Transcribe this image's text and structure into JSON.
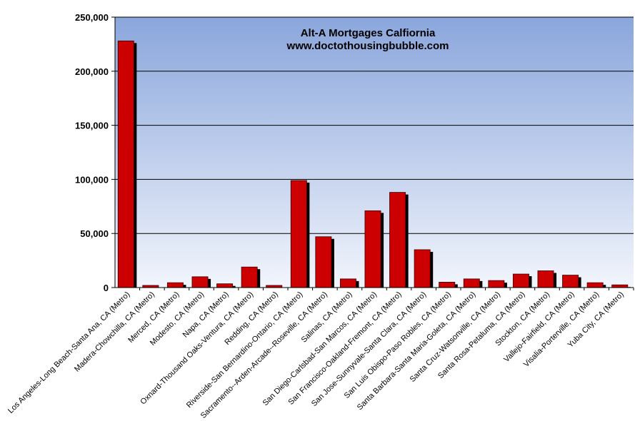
{
  "chart_data": {
    "type": "bar",
    "title": "Alt-A Mortgages Calfiornia",
    "subtitle": "www.doctothousingbubble.com",
    "xlabel": "",
    "ylabel": "",
    "ylim": [
      0,
      250000
    ],
    "yticks": [
      "0",
      "50,000",
      "100,000",
      "150,000",
      "200,000",
      "250,000"
    ],
    "ytick_values": [
      0,
      50000,
      100000,
      150000,
      200000,
      250000
    ],
    "grid": true,
    "legend": "none",
    "categories": [
      "Los Angeles-Long Beach-Santa Ana, CA (Metro)",
      "Madera-Chowchilla, CA (Metro)",
      "Merced, CA (Metro)",
      "Modesto, CA (Metro)",
      "Napa, CA (Metro)",
      "Oxnard-Thousand Oaks-Ventura, CA (Metro)",
      "Redding, CA (Metro)",
      "Riverside-San Bernardino-Ontario, CA (Metro)",
      "Sacramento--Arden-Arcade--Roseville, CA (Metro)",
      "Salinas, CA (Metro)",
      "San Diego-Carlsbad-San Marcos, CA (Metro)",
      "San Francisco-Oakland-Fremont, CA (Metro)",
      "San Jose-Sunnyvale-Santa Clara, CA (Metro)",
      "San Luis Obispo-Paso Robles, CA (Metro)",
      "Santa Barbara-Santa Maria-Goleta, CA (Metro)",
      "Santa Cruz-Watsonville, CA (Metro)",
      "Santa Rosa-Petaluma, CA (Metro)",
      "Stockton, CA (Metro)",
      "Vallejo-Fairfield, CA (Metro)",
      "Visalia-Porterville, CA (Metro)",
      "Yuba City, CA (Metro)"
    ],
    "values": [
      228000,
      2000,
      4500,
      10000,
      3500,
      19000,
      2000,
      99000,
      47000,
      8000,
      71000,
      88000,
      35000,
      5000,
      8000,
      6500,
      12500,
      15500,
      11500,
      4500,
      2500
    ],
    "colors": {
      "bar": "#cc0000",
      "bar_edge": "#400000",
      "shadow": "#000000",
      "plot_bg_top": "#8aa6dc",
      "plot_bg_bottom": "#f2f5fc",
      "grid": "#000000"
    }
  }
}
